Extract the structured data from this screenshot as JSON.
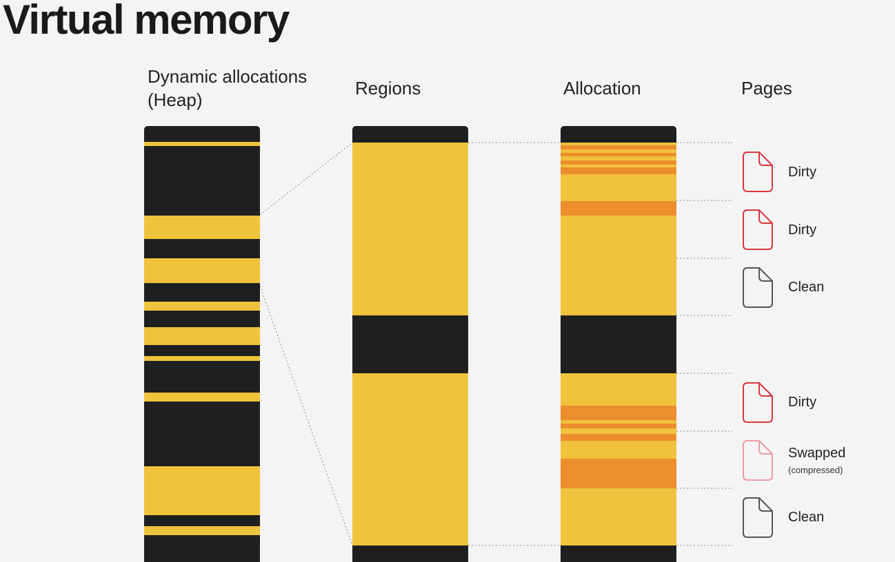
{
  "title": "Virtual memory",
  "columns": {
    "heap_line1": "Dynamic allocations",
    "heap_line2": "(Heap)",
    "regions": "Regions",
    "allocation": "Allocation",
    "pages": "Pages"
  },
  "pages": [
    {
      "label": "Dirty",
      "sublabel": "",
      "state": "dirty"
    },
    {
      "label": "Dirty",
      "sublabel": "",
      "state": "dirty"
    },
    {
      "label": "Clean",
      "sublabel": "",
      "state": "clean"
    },
    {
      "label": "Dirty",
      "sublabel": "",
      "state": "dirty"
    },
    {
      "label": "Swapped",
      "sublabel": "(compressed)",
      "state": "swapped"
    },
    {
      "label": "Clean",
      "sublabel": "",
      "state": "clean"
    }
  ],
  "colors": {
    "background": "#f4f4f5",
    "unused": "#1f1f1f",
    "allocated": "#f0c33c",
    "highlight": "#ec8e2c",
    "dirty_icon": "#d9363e",
    "clean_icon": "#555555",
    "swapped_icon": "#ee9aa0",
    "dotted_line": "#888888"
  }
}
